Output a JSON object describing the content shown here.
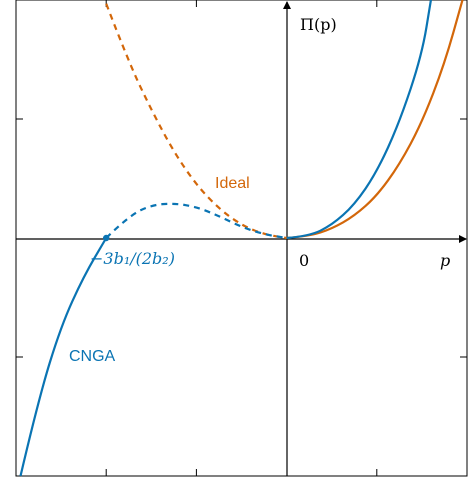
{
  "chart_data": {
    "type": "line",
    "title": "",
    "xlabel": "p",
    "ylabel": "Π(p)",
    "xlim": [
      -3,
      2
    ],
    "ylim": [
      -1.3,
      1.3
    ],
    "grid": false,
    "x_ticks": [
      -2,
      -1,
      1,
      2
    ],
    "y_ticks": [
      -0.65,
      0.65
    ],
    "origin_label": "0",
    "series": [
      {
        "name": "Ideal",
        "color": "#D3670A",
        "style": "dashed for p < 0, solid for p > 0",
        "x": [
          -2.0,
          -1.75,
          -1.5,
          -1.25,
          -1.0,
          -0.75,
          -0.5,
          -0.25,
          0,
          0.25,
          0.5,
          0.75,
          1.0,
          1.25,
          1.5,
          1.75,
          1.95
        ],
        "y": [
          1.28,
          0.96,
          0.7,
          0.47,
          0.29,
          0.16,
          0.07,
          0.02,
          0,
          0.01,
          0.05,
          0.12,
          0.23,
          0.4,
          0.63,
          0.95,
          1.3
        ]
      },
      {
        "name": "CNGA",
        "color": "#0A74B3",
        "style": "solid for p < -2, dashed between -2 and 0, solid for p > 0",
        "x": [
          -2.95,
          -2.75,
          -2.5,
          -2.25,
          -2.0,
          -1.75,
          -1.5,
          -1.25,
          -1.0,
          -0.75,
          -0.5,
          -0.25,
          0,
          0.25,
          0.5,
          0.75,
          1.0,
          1.25,
          1.5,
          1.6
        ],
        "y": [
          -1.3,
          -0.88,
          -0.48,
          -0.21,
          0,
          0.12,
          0.18,
          0.19,
          0.17,
          0.12,
          0.06,
          0.02,
          0,
          0.01,
          0.07,
          0.18,
          0.36,
          0.63,
          1.0,
          1.3
        ]
      }
    ],
    "annotations": [
      {
        "text": "Ideal",
        "color": "#D3670A"
      },
      {
        "text": "CNGA",
        "color": "#0A74B3"
      },
      {
        "text": "−3b₁/(2b₂)",
        "color": "#0A74B3",
        "at_x": -2,
        "at_y": 0
      }
    ]
  }
}
